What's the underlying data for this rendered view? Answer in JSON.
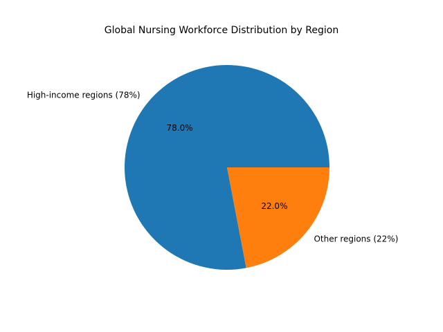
{
  "chart_data": {
    "type": "pie",
    "title": "Global Nursing Workforce Distribution by Region",
    "categories": [
      "High-income regions (78%)",
      "Other regions (22%)"
    ],
    "values": [
      78,
      22
    ],
    "value_labels": [
      "78.0%",
      "22.0%"
    ],
    "colors": [
      "#1f77b4",
      "#ff7f0e"
    ]
  }
}
